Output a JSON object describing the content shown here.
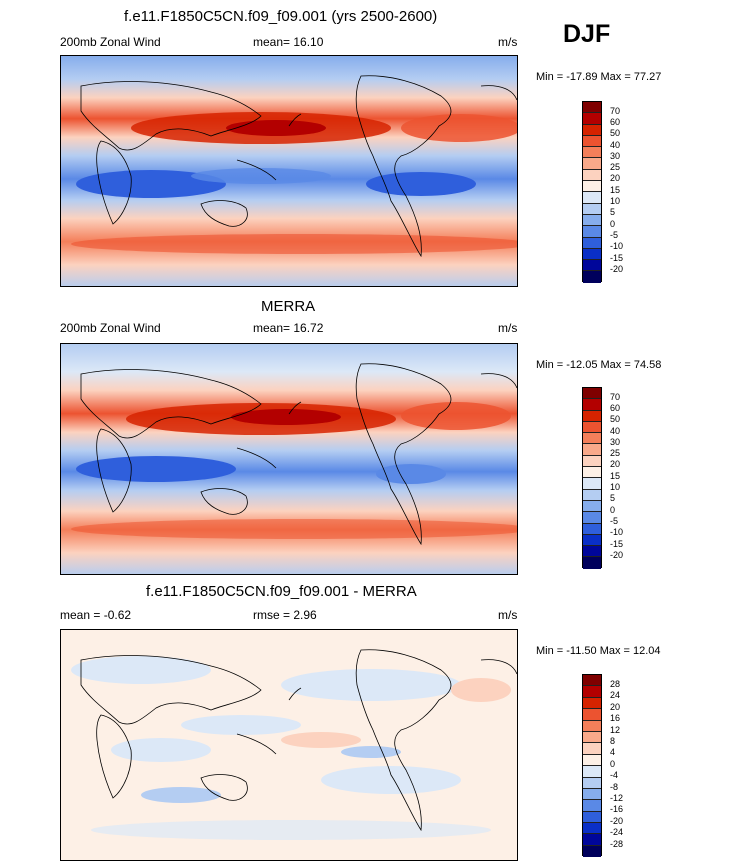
{
  "season": "DJF",
  "panels": [
    {
      "title": "f.e11.F1850C5CN.f09_f09.001 (yrs 2500-2600)",
      "left_label": "200mb Zonal Wind",
      "mean_label": "mean=  16.10",
      "units": "m/s",
      "minmax": "Min = -17.89 Max =  77.27",
      "colorbar_labels": [
        "70",
        "60",
        "50",
        "40",
        "30",
        "25",
        "20",
        "15",
        "10",
        "5",
        "0",
        "-5",
        "-10",
        "-15",
        "-20"
      ]
    },
    {
      "title": "MERRA",
      "left_label": "200mb Zonal Wind",
      "mean_label": "mean=  16.72",
      "units": "m/s",
      "minmax": "Min = -12.05 Max =  74.58",
      "colorbar_labels": [
        "70",
        "60",
        "50",
        "40",
        "30",
        "25",
        "20",
        "15",
        "10",
        "5",
        "0",
        "-5",
        "-10",
        "-15",
        "-20"
      ]
    },
    {
      "title": "f.e11.F1850C5CN.f09_f09.001 - MERRA",
      "left_label": "mean =  -0.62",
      "mean_label": "rmse =   2.96",
      "units": "m/s",
      "minmax": "Min = -11.50 Max =  12.04",
      "colorbar_labels": [
        "28",
        "24",
        "20",
        "16",
        "12",
        "8",
        "4",
        "0",
        "-4",
        "-8",
        "-12",
        "-16",
        "-20",
        "-24",
        "-28"
      ]
    }
  ],
  "colors": {
    "wind_scale": [
      "#7f0000",
      "#b30000",
      "#d62300",
      "#ec5330",
      "#f47f5a",
      "#f9a98a",
      "#fcd2bf",
      "#fdf0e6",
      "#dce8f7",
      "#b4cdf2",
      "#86adec",
      "#5a89e6",
      "#2f5fdc",
      "#0a2fc7",
      "#00069a",
      "#00005c"
    ],
    "diff_scale": [
      "#7f0000",
      "#b30000",
      "#d62300",
      "#ec5330",
      "#f47f5a",
      "#f9a98a",
      "#fcd2bf",
      "#fdf0e6",
      "#dce8f7",
      "#b4cdf2",
      "#86adec",
      "#5a89e6",
      "#2f5fdc",
      "#0a2fc7",
      "#00069a",
      "#00005c"
    ]
  }
}
